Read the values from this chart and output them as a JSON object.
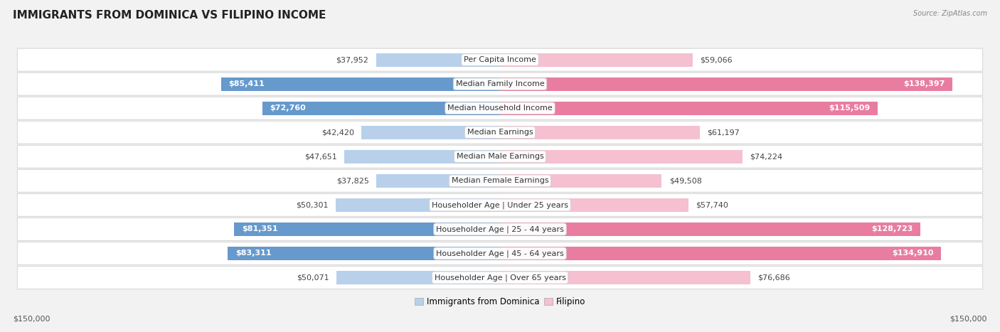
{
  "title": "IMMIGRANTS FROM DOMINICA VS FILIPINO INCOME",
  "source": "Source: ZipAtlas.com",
  "categories": [
    "Per Capita Income",
    "Median Family Income",
    "Median Household Income",
    "Median Earnings",
    "Median Male Earnings",
    "Median Female Earnings",
    "Householder Age | Under 25 years",
    "Householder Age | 25 - 44 years",
    "Householder Age | 45 - 64 years",
    "Householder Age | Over 65 years"
  ],
  "dominica_values": [
    37952,
    85411,
    72760,
    42420,
    47651,
    37825,
    50301,
    81351,
    83311,
    50071
  ],
  "filipino_values": [
    59066,
    138397,
    115509,
    61197,
    74224,
    49508,
    57740,
    128723,
    134910,
    76686
  ],
  "dominica_labels": [
    "$37,952",
    "$85,411",
    "$72,760",
    "$42,420",
    "$47,651",
    "$37,825",
    "$50,301",
    "$81,351",
    "$83,311",
    "$50,071"
  ],
  "filipino_labels": [
    "$59,066",
    "$138,397",
    "$115,509",
    "$61,197",
    "$74,224",
    "$49,508",
    "$57,740",
    "$128,723",
    "$134,910",
    "$76,686"
  ],
  "dom_color_light": "#b8d0ea",
  "dom_color_dark": "#6699cc",
  "fil_color_light": "#f5c0d0",
  "fil_color_dark": "#e87da0",
  "dom_threshold": 65000,
  "fil_threshold": 90000,
  "max_value": 150000,
  "axis_label_left": "$150,000",
  "axis_label_right": "$150,000",
  "legend_dominica": "Immigrants from Dominica",
  "legend_filipino": "Filipino",
  "bg_color": "#f2f2f2",
  "row_bg_color": "#ffffff",
  "row_border_color": "#d8d8d8",
  "title_fontsize": 11,
  "label_fontsize": 8,
  "category_fontsize": 8,
  "axis_fontsize": 8
}
